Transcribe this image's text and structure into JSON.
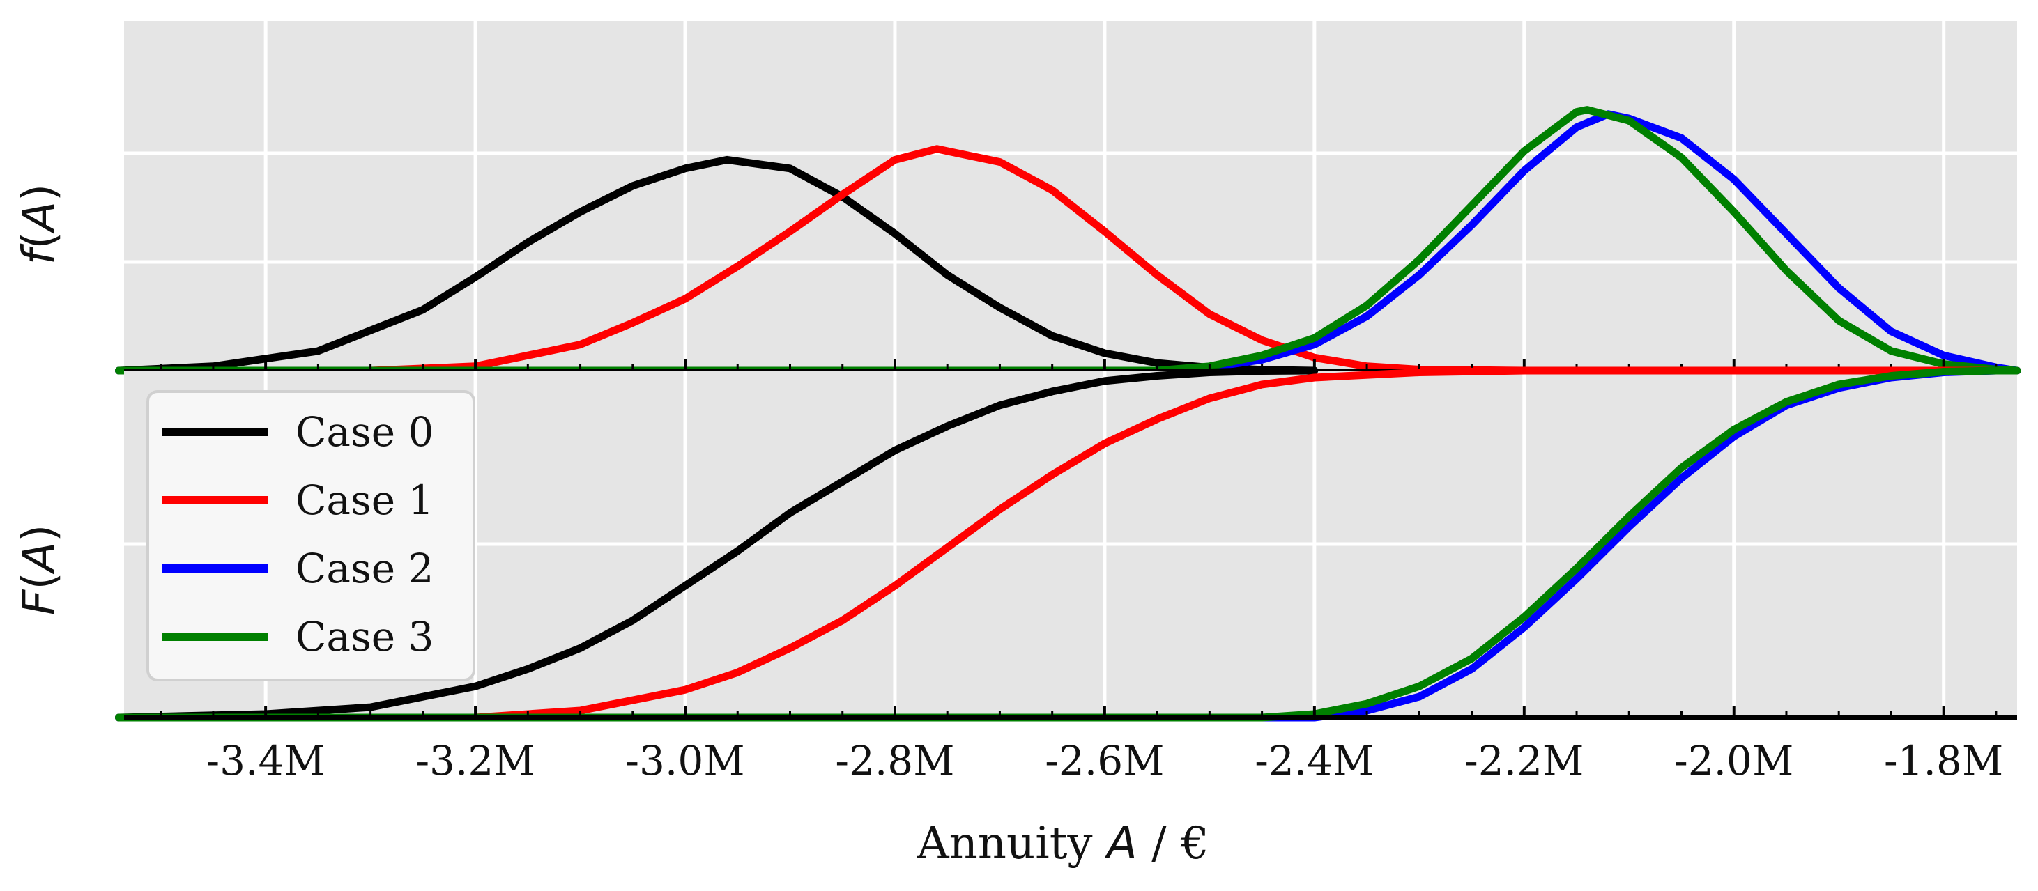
{
  "chart_data": [
    {
      "type": "line",
      "panel": "top",
      "ylabel": "f(A)",
      "ylabel_parts": {
        "var": "f",
        "open": "(",
        "arg": "A",
        "close": ")"
      },
      "xlim": [
        -3.535,
        -1.73
      ],
      "series": [
        {
          "name": "Case 0",
          "color": "#000000",
          "x": [
            -3.54,
            -3.45,
            -3.35,
            -3.25,
            -3.2,
            -3.15,
            -3.1,
            -3.05,
            -3.0,
            -2.96,
            -2.9,
            -2.85,
            -2.8,
            -2.75,
            -2.7,
            -2.65,
            -2.6,
            -2.55,
            -2.5,
            -2.45,
            -2.4
          ],
          "y": [
            0.0,
            0.02,
            0.09,
            0.28,
            0.43,
            0.59,
            0.73,
            0.85,
            0.93,
            0.97,
            0.93,
            0.8,
            0.63,
            0.44,
            0.29,
            0.16,
            0.08,
            0.035,
            0.014,
            0.004,
            0.0
          ]
        },
        {
          "name": "Case 1",
          "color": "#ff0000",
          "x": [
            -3.54,
            -3.3,
            -3.2,
            -3.1,
            -3.05,
            -3.0,
            -2.95,
            -2.9,
            -2.85,
            -2.8,
            -2.76,
            -2.7,
            -2.65,
            -2.6,
            -2.55,
            -2.5,
            -2.45,
            -2.4,
            -2.35,
            -2.3,
            -2.2,
            -1.73
          ],
          "y": [
            0.0,
            0.0,
            0.02,
            0.12,
            0.22,
            0.33,
            0.48,
            0.64,
            0.81,
            0.97,
            1.02,
            0.96,
            0.83,
            0.64,
            0.44,
            0.26,
            0.14,
            0.06,
            0.02,
            0.005,
            0.0,
            0.0
          ]
        },
        {
          "name": "Case 2",
          "color": "#0000ff",
          "x": [
            -3.54,
            -2.55,
            -2.5,
            -2.45,
            -2.4,
            -2.35,
            -2.3,
            -2.25,
            -2.2,
            -2.15,
            -2.12,
            -2.1,
            -2.05,
            -2.0,
            -1.95,
            -1.9,
            -1.85,
            -1.8,
            -1.75,
            -1.73
          ],
          "y": [
            0.0,
            0.0,
            0.015,
            0.05,
            0.12,
            0.25,
            0.44,
            0.67,
            0.92,
            1.12,
            1.18,
            1.16,
            1.07,
            0.88,
            0.63,
            0.38,
            0.18,
            0.07,
            0.015,
            0.0
          ]
        },
        {
          "name": "Case 3",
          "color": "#008000",
          "x": [
            -3.54,
            -2.55,
            -2.5,
            -2.45,
            -2.4,
            -2.35,
            -2.3,
            -2.25,
            -2.2,
            -2.15,
            -2.14,
            -2.1,
            -2.05,
            -2.0,
            -1.95,
            -1.9,
            -1.85,
            -1.8,
            -1.75,
            -1.73
          ],
          "y": [
            0.0,
            0.0,
            0.02,
            0.07,
            0.15,
            0.3,
            0.51,
            0.76,
            1.01,
            1.19,
            1.2,
            1.15,
            0.98,
            0.73,
            0.46,
            0.23,
            0.09,
            0.03,
            0.005,
            0.0
          ]
        }
      ]
    },
    {
      "type": "line",
      "panel": "bottom",
      "ylabel": "F(A)",
      "ylabel_parts": {
        "var": "F",
        "open": "(",
        "arg": "A",
        "close": ")"
      },
      "xlabel": "Annuity A / €",
      "xlabel_parts": {
        "pre": "Annuity ",
        "var": "A",
        "post": " / €"
      },
      "xlim": [
        -3.535,
        -1.73
      ],
      "xticks": [
        -3.4,
        -3.2,
        -3.0,
        -2.8,
        -2.6,
        -2.4,
        -2.2,
        -2.0,
        -1.8
      ],
      "xticklabels": [
        "-3.4M",
        "-3.2M",
        "-3.0M",
        "-2.8M",
        "-2.6M",
        "-2.4M",
        "-2.2M",
        "-2.0M",
        "-1.8M"
      ],
      "series": [
        {
          "name": "Case 0",
          "color": "#000000",
          "x": [
            -3.54,
            -3.4,
            -3.3,
            -3.2,
            -3.15,
            -3.1,
            -3.05,
            -3.0,
            -2.95,
            -2.9,
            -2.85,
            -2.8,
            -2.75,
            -2.7,
            -2.65,
            -2.6,
            -2.55,
            -2.5,
            -2.45,
            -2.4
          ],
          "y": [
            0.0,
            0.01,
            0.03,
            0.09,
            0.14,
            0.2,
            0.28,
            0.38,
            0.48,
            0.59,
            0.68,
            0.77,
            0.84,
            0.9,
            0.94,
            0.97,
            0.985,
            0.995,
            0.999,
            1.0
          ]
        },
        {
          "name": "Case 1",
          "color": "#ff0000",
          "x": [
            -3.54,
            -3.2,
            -3.1,
            -3.0,
            -2.95,
            -2.9,
            -2.85,
            -2.8,
            -2.75,
            -2.7,
            -2.65,
            -2.6,
            -2.55,
            -2.5,
            -2.45,
            -2.4,
            -2.3,
            -2.2,
            -1.73
          ],
          "y": [
            0.0,
            0.0,
            0.02,
            0.08,
            0.13,
            0.2,
            0.28,
            0.38,
            0.49,
            0.6,
            0.7,
            0.79,
            0.86,
            0.92,
            0.96,
            0.98,
            0.995,
            1.0,
            1.0
          ]
        },
        {
          "name": "Case 2",
          "color": "#0000ff",
          "x": [
            -3.54,
            -2.4,
            -2.35,
            -2.3,
            -2.25,
            -2.2,
            -2.15,
            -2.1,
            -2.05,
            -2.0,
            -1.95,
            -1.9,
            -1.85,
            -1.8,
            -1.75,
            -1.73
          ],
          "y": [
            0.0,
            0.0,
            0.02,
            0.06,
            0.14,
            0.26,
            0.4,
            0.55,
            0.69,
            0.81,
            0.9,
            0.95,
            0.98,
            0.995,
            1.0,
            1.0
          ]
        },
        {
          "name": "Case 3",
          "color": "#008000",
          "x": [
            -3.54,
            -2.45,
            -2.4,
            -2.35,
            -2.3,
            -2.25,
            -2.2,
            -2.15,
            -2.1,
            -2.05,
            -2.0,
            -1.95,
            -1.9,
            -1.85,
            -1.8,
            -1.75,
            -1.73
          ],
          "y": [
            0.0,
            0.0,
            0.01,
            0.04,
            0.09,
            0.17,
            0.29,
            0.43,
            0.58,
            0.72,
            0.83,
            0.91,
            0.96,
            0.985,
            0.997,
            1.0,
            1.0
          ]
        }
      ]
    }
  ],
  "legend": {
    "position": "lower-left of bottom panel",
    "entries": [
      {
        "label": "Case 0",
        "color": "#000000"
      },
      {
        "label": "Case 1",
        "color": "#ff0000"
      },
      {
        "label": "Case 2",
        "color": "#0000ff"
      },
      {
        "label": "Case 3",
        "color": "#008000"
      }
    ]
  },
  "style": {
    "panel_background": "#e5e5e5",
    "grid_color": "#ffffff",
    "grid": true
  }
}
